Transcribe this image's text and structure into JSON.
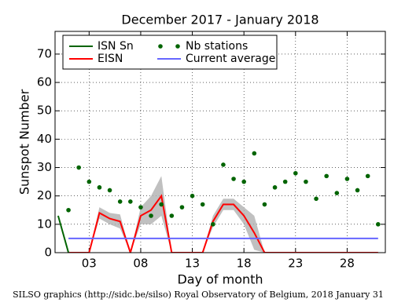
{
  "chart_data": {
    "type": "line",
    "title": "December 2017 - January 2018",
    "x_label": "Day of month",
    "y_label": "Sunspot Number",
    "footer": "SILSO graphics (http://sidc.be/silso) Royal Observatory of Belgium, 2018 January 31",
    "xlim": [
      -0.3,
      31.7
    ],
    "ylim": [
      0,
      78
    ],
    "xticks": [
      {
        "value": 3,
        "label": "03"
      },
      {
        "value": 8,
        "label": "08"
      },
      13,
      18,
      23,
      28
    ],
    "yticks": [
      0,
      10,
      20,
      30,
      40,
      50,
      60,
      70
    ],
    "grid": true,
    "series": [
      {
        "name": "ISN Sn",
        "color": "#006400",
        "style": "line",
        "x": [
          0,
          1
        ],
        "values": [
          13,
          0
        ]
      },
      {
        "name": "EISN",
        "color": "#ff0000",
        "style": "line",
        "band_color": "#b0b0b0",
        "x": [
          1,
          2,
          3,
          4,
          5,
          6,
          7,
          8,
          9,
          10,
          11,
          12,
          13,
          14,
          15,
          16,
          17,
          18,
          19,
          20,
          21,
          22,
          23,
          24,
          25,
          26,
          27,
          28,
          29,
          30,
          31
        ],
        "values": [
          0,
          0,
          0,
          14,
          12,
          11,
          0,
          13,
          15,
          20,
          0,
          0,
          0,
          0,
          11,
          17,
          17,
          13,
          7,
          0,
          0,
          0,
          0,
          0,
          0,
          0,
          0,
          0,
          0,
          0,
          0
        ],
        "error": [
          0,
          0,
          0,
          2,
          2,
          2.5,
          0,
          3,
          5,
          7,
          0,
          0,
          0,
          0,
          2,
          2,
          2,
          3,
          6,
          0,
          0,
          0,
          0,
          0,
          0,
          0,
          0,
          0,
          0,
          0,
          0
        ]
      },
      {
        "name": "Nb stations",
        "color": "#006400",
        "style": "dots",
        "x": [
          1,
          2,
          3,
          4,
          5,
          6,
          7,
          8,
          9,
          10,
          11,
          12,
          13,
          14,
          15,
          16,
          17,
          18,
          19,
          20,
          21,
          22,
          23,
          24,
          25,
          26,
          27,
          28,
          29,
          30,
          31
        ],
        "values": [
          15,
          30,
          25,
          23,
          22,
          18,
          18,
          16,
          13,
          17,
          13,
          16,
          20,
          17,
          10,
          31,
          26,
          25,
          35,
          17,
          23,
          25,
          28,
          25,
          19,
          27,
          21,
          26,
          22,
          27,
          10
        ]
      },
      {
        "name": "Current average",
        "color": "#6666ff",
        "style": "line",
        "x": [
          1,
          31
        ],
        "values": [
          5,
          5
        ]
      }
    ]
  }
}
